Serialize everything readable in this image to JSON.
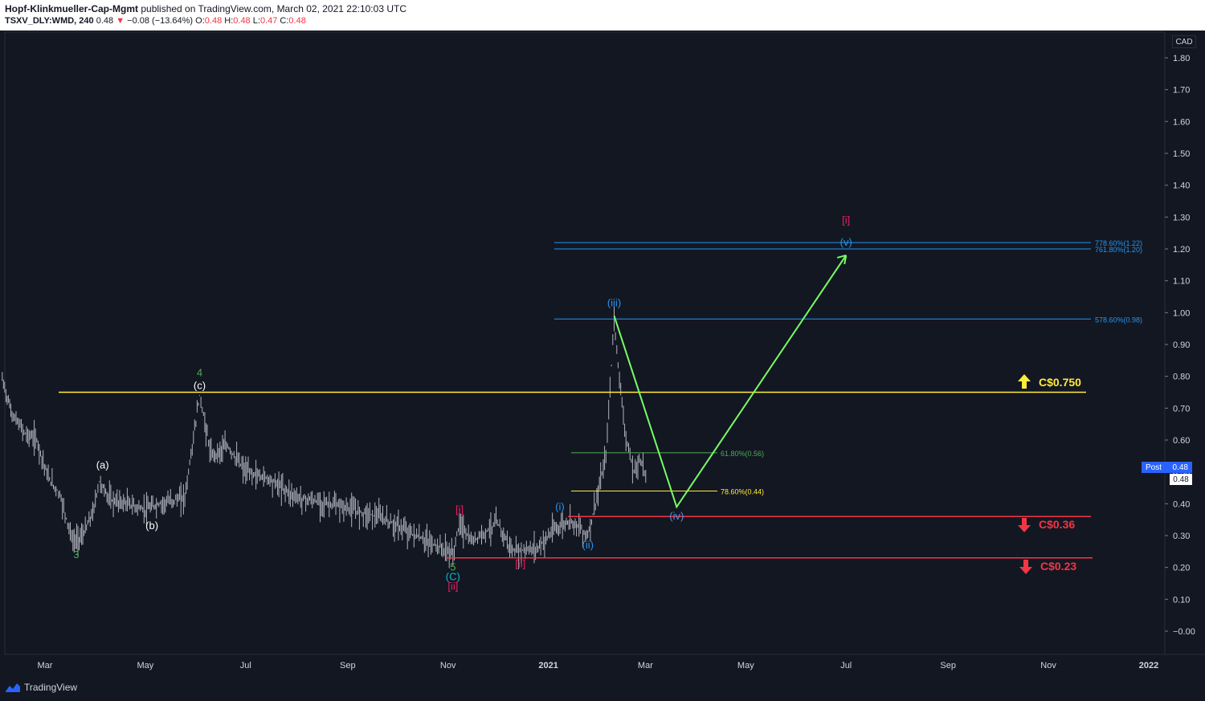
{
  "header": {
    "author": "Hopf-Klinkmueller-Cap-Mgmt",
    "published": "published on TradingView.com, March 02, 2021 22:10:03 UTC",
    "symbol": "TSXV_DLY:WMD, 240",
    "last": "0.48",
    "change": "−0.08 (−13.64%)",
    "o_label": "O:",
    "o": "0.48",
    "h_label": "H:",
    "h": "0.48",
    "l_label": "L:",
    "l": "0.47",
    "c_label": "C:",
    "c": "0.48"
  },
  "footer": {
    "brand": "TradingView"
  },
  "badges": {
    "currency": "CAD",
    "post_label": "Post",
    "post_value": "0.48",
    "price_value": "0.48"
  },
  "colors": {
    "background": "#131722",
    "candles": "#b2b5be",
    "yellow": "#ffeb3b",
    "red": "#f23645",
    "blue_fib": "#2196f3",
    "green_fib": "#4caf50",
    "green_arrow": "#76ff63",
    "magenta": "#e91e63",
    "wave_blue": "#2196f3"
  },
  "chart_data": {
    "type": "candlestick",
    "x_axis_labels": [
      "Mar",
      "May",
      "Jul",
      "Sep",
      "Nov",
      "2021",
      "Mar",
      "May",
      "Jul",
      "Sep",
      "Nov",
      "2022"
    ],
    "y_axis_labels": [
      "1.80",
      "1.70",
      "1.60",
      "1.50",
      "1.40",
      "1.30",
      "1.20",
      "1.10",
      "1.00",
      "0.90",
      "0.80",
      "0.70",
      "0.60",
      "0.50",
      "0.40",
      "0.30",
      "0.20",
      "0.10",
      "−0.00"
    ],
    "ylim": [
      -0.05,
      1.87
    ],
    "price_path": [
      [
        "2020-02-04",
        0.79
      ],
      [
        "2020-02-10",
        0.68
      ],
      [
        "2020-02-18",
        0.62
      ],
      [
        "2020-02-25",
        0.6
      ],
      [
        "2020-03-03",
        0.48
      ],
      [
        "2020-03-10",
        0.43
      ],
      [
        "2020-03-18",
        0.28
      ],
      [
        "2020-03-24",
        0.3
      ],
      [
        "2020-03-30",
        0.37
      ],
      [
        "2020-04-03",
        0.47
      ],
      [
        "2020-04-10",
        0.41
      ],
      [
        "2020-04-20",
        0.4
      ],
      [
        "2020-05-01",
        0.38
      ],
      [
        "2020-05-10",
        0.4
      ],
      [
        "2020-05-25",
        0.42
      ],
      [
        "2020-06-03",
        0.74
      ],
      [
        "2020-06-10",
        0.55
      ],
      [
        "2020-06-20",
        0.58
      ],
      [
        "2020-07-01",
        0.5
      ],
      [
        "2020-07-15",
        0.48
      ],
      [
        "2020-08-01",
        0.42
      ],
      [
        "2020-08-20",
        0.4
      ],
      [
        "2020-09-05",
        0.38
      ],
      [
        "2020-09-20",
        0.36
      ],
      [
        "2020-10-05",
        0.32
      ],
      [
        "2020-10-20",
        0.28
      ],
      [
        "2020-11-01",
        0.25
      ],
      [
        "2020-11-04",
        0.24
      ],
      [
        "2020-11-08",
        0.34
      ],
      [
        "2020-11-15",
        0.28
      ],
      [
        "2020-12-01",
        0.34
      ],
      [
        "2020-12-10",
        0.25
      ],
      [
        "2020-12-25",
        0.26
      ],
      [
        "2021-01-05",
        0.32
      ],
      [
        "2021-01-15",
        0.35
      ],
      [
        "2021-01-25",
        0.3
      ],
      [
        "2021-02-01",
        0.45
      ],
      [
        "2021-02-05",
        0.55
      ],
      [
        "2021-02-10",
        0.98
      ],
      [
        "2021-02-14",
        0.75
      ],
      [
        "2021-02-18",
        0.58
      ],
      [
        "2021-02-22",
        0.5
      ],
      [
        "2021-02-26",
        0.54
      ],
      [
        "2021-03-02",
        0.48
      ]
    ],
    "horizontal_levels": [
      {
        "price": 0.75,
        "label": "C$0.750",
        "color": "yellow",
        "direction": "up"
      },
      {
        "price": 0.36,
        "label": "C$0.36",
        "color": "red",
        "direction": "down"
      },
      {
        "price": 0.23,
        "label": "C$0.23",
        "color": "red",
        "direction": "down"
      }
    ],
    "fib_levels": [
      {
        "price": 1.22,
        "label": "778.60%(1.22)",
        "color": "blue"
      },
      {
        "price": 1.2,
        "label": "761.80%(1.20)",
        "color": "blue"
      },
      {
        "price": 0.98,
        "label": "578.60%(0.98)",
        "color": "blue"
      },
      {
        "price": 0.56,
        "label": "61.80%(0.56)",
        "color": "green"
      },
      {
        "price": 0.44,
        "label": "78.60%(0.44)",
        "color": "yellow"
      }
    ],
    "projection_path": [
      [
        "2021-02-10",
        0.99
      ],
      [
        "2021-03-20",
        0.39
      ],
      [
        "2021-07-01",
        1.18
      ]
    ],
    "wave_labels": [
      {
        "text": "3",
        "date": "2020-03-20",
        "price": 0.23,
        "color": "green"
      },
      {
        "text": "(a)",
        "date": "2020-04-05",
        "price": 0.51,
        "color": "white"
      },
      {
        "text": "(b)",
        "date": "2020-05-05",
        "price": 0.32,
        "color": "white"
      },
      {
        "text": "4",
        "date": "2020-06-03",
        "price": 0.8,
        "color": "green"
      },
      {
        "text": "(c)",
        "date": "2020-06-03",
        "price": 0.76,
        "color": "white"
      },
      {
        "text": "[i]",
        "date": "2020-11-08",
        "price": 0.37,
        "color": "magenta"
      },
      {
        "text": "5",
        "date": "2020-11-04",
        "price": 0.19,
        "color": "green"
      },
      {
        "text": "(C)",
        "date": "2020-11-04",
        "price": 0.16,
        "color": "cyan"
      },
      {
        "text": "[ii]",
        "date": "2020-11-04",
        "price": 0.13,
        "color": "magenta"
      },
      {
        "text": "[ii]",
        "date": "2020-12-15",
        "price": 0.2,
        "color": "magenta"
      },
      {
        "text": "(i)",
        "date": "2021-01-08",
        "price": 0.38,
        "color": "blue"
      },
      {
        "text": "(ii)",
        "date": "2021-01-25",
        "price": 0.26,
        "color": "blue"
      },
      {
        "text": "(iii)",
        "date": "2021-02-10",
        "price": 1.02,
        "color": "blue"
      },
      {
        "text": "(iv)",
        "date": "2021-03-20",
        "price": 0.35,
        "color": "blue_dim"
      },
      {
        "text": "(v)",
        "date": "2021-07-01",
        "price": 1.21,
        "color": "blue"
      },
      {
        "text": "[i]",
        "date": "2021-07-01",
        "price": 1.28,
        "color": "magenta"
      }
    ]
  }
}
